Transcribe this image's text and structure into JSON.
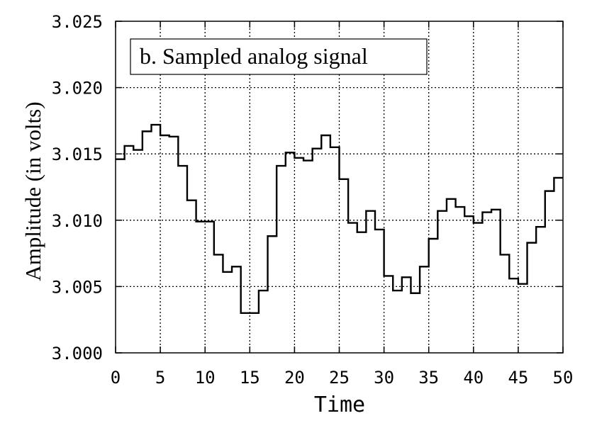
{
  "chart_data": {
    "type": "line",
    "style": "step",
    "title": "b. Sampled analog signal",
    "xlabel": "Time",
    "ylabel": "Amplitude (in volts)",
    "xlim": [
      0,
      50
    ],
    "ylim": [
      3.0,
      3.025
    ],
    "xticks": [
      "0",
      "5",
      "10",
      "15",
      "20",
      "25",
      "30",
      "35",
      "40",
      "45",
      "50"
    ],
    "yticks": [
      "3.000",
      "3.005",
      "3.010",
      "3.015",
      "3.020",
      "3.025"
    ],
    "grid": true,
    "series": [
      {
        "x": [
          0,
          1,
          2,
          3,
          4,
          5,
          6,
          7,
          8,
          9,
          10,
          11,
          12,
          13,
          14,
          15,
          16,
          17,
          18,
          19,
          20,
          21,
          22,
          23,
          24,
          25,
          26,
          27,
          28,
          29,
          30,
          31,
          32,
          33,
          34,
          35,
          36,
          37,
          38,
          39,
          40,
          41,
          42,
          43,
          44,
          45,
          46,
          47,
          48,
          49
        ],
        "values": [
          3.0146,
          3.0156,
          3.0153,
          3.0167,
          3.0172,
          3.0164,
          3.0163,
          3.0141,
          3.0115,
          3.0099,
          3.0099,
          3.0074,
          3.0061,
          3.0065,
          3.003,
          3.003,
          3.0047,
          3.0088,
          3.0141,
          3.0151,
          3.0147,
          3.0145,
          3.0154,
          3.0164,
          3.0155,
          3.0131,
          3.0098,
          3.0091,
          3.0107,
          3.0093,
          3.0058,
          3.0047,
          3.0057,
          3.0045,
          3.0065,
          3.0086,
          3.0107,
          3.0116,
          3.011,
          3.0103,
          3.0098,
          3.0106,
          3.0108,
          3.0074,
          3.0056,
          3.0052,
          3.0083,
          3.0095,
          3.0122,
          3.0132
        ],
        "color": "#000000"
      }
    ]
  }
}
